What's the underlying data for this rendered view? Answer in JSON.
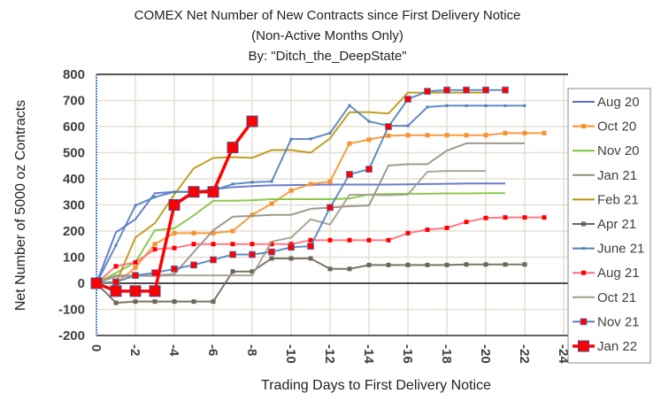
{
  "chart_data": {
    "type": "line",
    "title": [
      "COMEX Net Number of New Contracts since First Delivery Notice",
      "(Non-Active Months Only)",
      "By:  \"Ditch_the_DeepState\""
    ],
    "xlabel": "Trading Days to First Delivery Notice",
    "ylabel": "Net Number of 5000 oz Contracts",
    "xlim": [
      0,
      -24
    ],
    "ylim": [
      -200,
      800
    ],
    "x_ticks": [
      "0",
      "-2",
      "-4",
      "-6",
      "-8",
      "-10",
      "-12",
      "-14",
      "-16",
      "-18",
      "-20",
      "-22",
      "-24"
    ],
    "y_ticks": [
      "800",
      "700",
      "600",
      "500",
      "400",
      "300",
      "200",
      "100",
      "0",
      "-100",
      "-200"
    ],
    "grid": true,
    "legend_position": "right",
    "series": [
      {
        "name": "Aug 20",
        "color": "#5a6ec8",
        "marker": "none",
        "values": [
          0,
          195,
          245,
          345,
          350,
          350,
          360,
          368,
          372,
          375,
          376,
          377,
          378,
          378,
          378,
          378,
          379,
          380,
          381,
          382,
          382,
          382
        ]
      },
      {
        "name": "Oct 20",
        "color": "#f7922c",
        "marker": "small",
        "values": [
          0,
          0,
          60,
          150,
          192,
          192,
          192,
          200,
          262,
          305,
          355,
          380,
          390,
          535,
          550,
          565,
          567,
          567,
          567,
          567,
          567,
          575,
          575,
          575
        ]
      },
      {
        "name": "Nov 20",
        "color": "#7fc43b",
        "marker": "none",
        "values": [
          0,
          40,
          80,
          203,
          210,
          260,
          316,
          316,
          318,
          322,
          322,
          322,
          322,
          325,
          340,
          342,
          343,
          343,
          344,
          344,
          345,
          345
        ]
      },
      {
        "name": "Jan 21",
        "color": "#948e80",
        "marker": "none",
        "values": [
          0,
          30,
          30,
          30,
          35,
          120,
          203,
          255,
          258,
          262,
          262,
          285,
          290,
          295,
          298,
          451,
          456,
          456,
          508,
          536,
          536,
          536,
          536
        ]
      },
      {
        "name": "Feb 21",
        "color": "#b8950a",
        "marker": "none",
        "values": [
          0,
          0,
          175,
          230,
          340,
          440,
          480,
          483,
          480,
          510,
          510,
          500,
          555,
          655,
          655,
          650,
          730,
          730,
          730,
          730,
          730
        ]
      },
      {
        "name": "Apr 21",
        "color": "#6b6659",
        "marker": "small",
        "values": [
          0,
          -75,
          -70,
          -70,
          -70,
          -70,
          -70,
          45,
          45,
          95,
          95,
          95,
          55,
          55,
          70,
          70,
          70,
          70,
          70,
          72,
          72,
          72,
          72
        ]
      },
      {
        "name": "June 21",
        "color": "#4f81bd",
        "marker": "tiny",
        "values": [
          0,
          145,
          298,
          330,
          350,
          350,
          355,
          380,
          387,
          390,
          552,
          553,
          575,
          681,
          620,
          603,
          603,
          675,
          680,
          680,
          680,
          680,
          680
        ]
      },
      {
        "name": "Aug 21",
        "color": "#ff6b7a",
        "marker": "small-red",
        "values": [
          0,
          65,
          80,
          130,
          135,
          150,
          150,
          150,
          150,
          150,
          150,
          165,
          165,
          165,
          165,
          165,
          192,
          205,
          212,
          235,
          250,
          252,
          252,
          252
        ]
      },
      {
        "name": "Oct 21",
        "color": "#a29c8c",
        "marker": "none",
        "values": [
          0,
          25,
          28,
          28,
          30,
          30,
          30,
          30,
          30,
          160,
          175,
          245,
          225,
          339,
          339,
          337,
          340,
          427,
          430,
          430,
          430
        ]
      },
      {
        "name": "Nov 21",
        "color": "#4f81bd",
        "marker": "red-square",
        "values": [
          0,
          5,
          30,
          40,
          55,
          70,
          90,
          110,
          110,
          120,
          138,
          142,
          290,
          417,
          437,
          600,
          705,
          735,
          740,
          740,
          740,
          740
        ]
      },
      {
        "name": "Jan 22",
        "color": "#ff0000",
        "marker": "big-red-square",
        "values": [
          0,
          -30,
          -30,
          -30,
          300,
          350,
          350,
          520,
          620
        ]
      }
    ]
  }
}
